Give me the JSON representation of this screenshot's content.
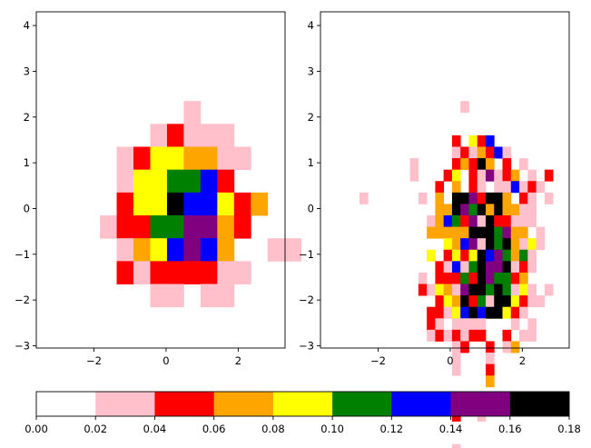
{
  "palette": [
    "#ffffff",
    "#ffc0cb",
    "#ff0000",
    "#ffa500",
    "#ffff00",
    "#008000",
    "#0000ff",
    "#800080",
    "#000000"
  ],
  "chart_data": [
    {
      "type": "heatmap",
      "xlim": [
        -3.6,
        3.3
      ],
      "ylim": [
        -3.05,
        4.3
      ],
      "x_ticks": [
        {
          "v": -2,
          "label": "−2"
        },
        {
          "v": 0,
          "label": "0"
        },
        {
          "v": 2,
          "label": "2"
        }
      ],
      "y_ticks": [
        {
          "v": -3,
          "label": "−3"
        },
        {
          "v": -2,
          "label": "−2"
        },
        {
          "v": -1,
          "label": "−1"
        },
        {
          "v": 0,
          "label": "0"
        },
        {
          "v": 1,
          "label": "1"
        },
        {
          "v": 2,
          "label": "2"
        },
        {
          "v": 3,
          "label": "3"
        },
        {
          "v": 4,
          "label": "4"
        }
      ],
      "grid": {
        "x0": -2.3,
        "y_top": 2.35,
        "cell_w": 0.465,
        "cell_h": 0.5
      },
      "rows": [
        "0000001000000",
        "0000121110000",
        "0012443311000",
        "0014455620000",
        "0024486642300",
        "0122557732000",
        "0013467630011",
        "0021222211000",
        "0000110110000"
      ]
    },
    {
      "type": "heatmap",
      "xlim": [
        -3.6,
        3.3
      ],
      "ylim": [
        -3.05,
        4.3
      ],
      "x_ticks": [
        {
          "v": -2,
          "label": "−2"
        },
        {
          "v": 0,
          "label": "0"
        },
        {
          "v": 2,
          "label": "2"
        }
      ],
      "y_ticks": [
        {
          "v": -3,
          "label": "−3"
        },
        {
          "v": -2,
          "label": "−2"
        },
        {
          "v": -1,
          "label": "−1"
        },
        {
          "v": 0,
          "label": "0"
        },
        {
          "v": 1,
          "label": "1"
        },
        {
          "v": 2,
          "label": "2"
        },
        {
          "v": 3,
          "label": "3"
        },
        {
          "v": 4,
          "label": "4"
        }
      ],
      "grid": {
        "x0": -2.75,
        "y_top": 2.35,
        "cell_w": 0.2333,
        "cell_h": 0.25
      },
      "rows": [
        "0000000000000100000000000",
        "0000000000000000000000000",
        "0000000000000000000000000",
        "0000000000002042600000000",
        "0000000000001213261000000",
        "0000000100002328302010000",
        "0000000100024021712301020",
        "0000000000203021011612100",
        "0100000010308872883021010",
        "0000000000338758383311000",
        "0000000001365271822111000",
        "0000000003333388857330100",
        "0000000000043671858314100",
        "0000000004024248675351000",
        "0000000000216158778121000",
        "0000000010222528755230000",
        "0000000021431788585141010",
        "0000000000243825188421100",
        "0000000002214686884210000",
        "0000000002101111000101000",
        "0000000001212122002011000",
        "0000000000001200201300000",
        "0000000000001000100000000",
        "0000000000001000200000000",
        "0000000000000000300000000",
        "0000000000000000000000000",
        "0000000000000000000000000",
        "0000000000002001000000000",
        "0000000000000000000000000",
        "0000000000000000000000000",
        "0000000000001000000000000"
      ]
    }
  ],
  "colorbar": {
    "ticks": [
      "0.00",
      "0.02",
      "0.04",
      "0.06",
      "0.08",
      "0.10",
      "0.12",
      "0.14",
      "0.16",
      "0.18"
    ]
  }
}
